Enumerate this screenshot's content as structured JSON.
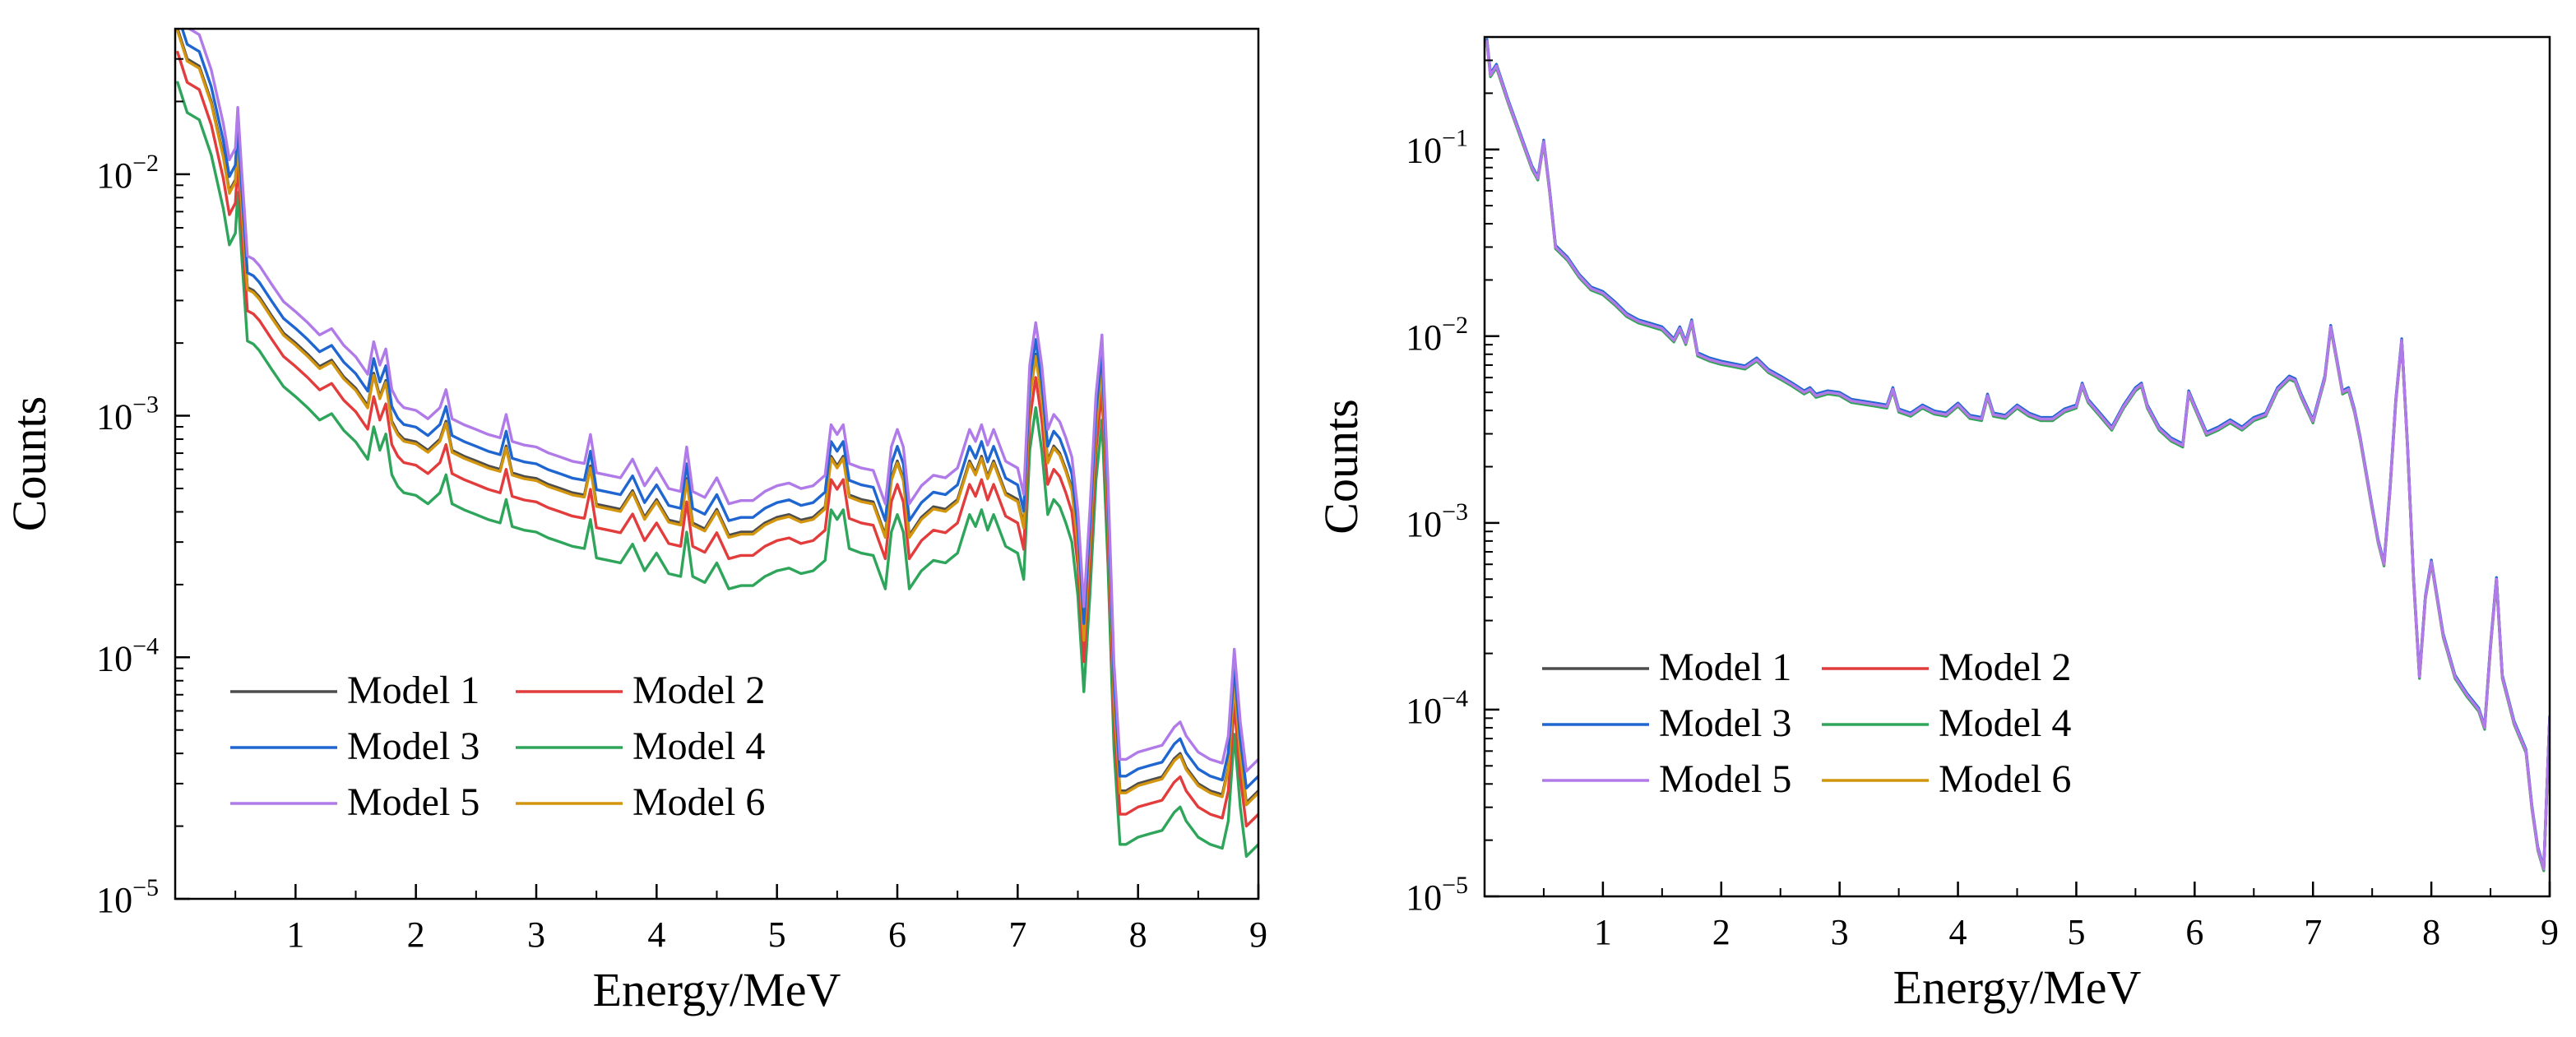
{
  "chart_data": [
    {
      "type": "line",
      "panel": "left",
      "xlabel": "Energy/MeV",
      "ylabel": "Counts",
      "xscale": "linear",
      "yscale": "log",
      "xlim": [
        0,
        9
      ],
      "ylim": [
        1e-05,
        0.04
      ],
      "x_ticks": [
        1,
        2,
        3,
        4,
        5,
        6,
        7,
        8,
        9
      ],
      "y_ticks": [
        {
          "value": 1e-05,
          "base": "10",
          "exp": "−5"
        },
        {
          "value": 0.0001,
          "base": "10",
          "exp": "−4"
        },
        {
          "value": 0.001,
          "base": "10",
          "exp": "−3"
        },
        {
          "value": 0.01,
          "base": "10",
          "exp": "−2"
        }
      ],
      "legend_position": "lower-left",
      "legend": [
        "Model 1",
        "Model 2",
        "Model 3",
        "Model 4",
        "Model 5",
        "Model 6"
      ],
      "reference_spectrum": {
        "x": [
          0.02,
          0.1,
          0.2,
          0.3,
          0.4,
          0.45,
          0.5,
          0.52,
          0.55,
          0.6,
          0.65,
          0.7,
          0.8,
          0.9,
          1.0,
          1.1,
          1.2,
          1.3,
          1.4,
          1.5,
          1.6,
          1.65,
          1.7,
          1.75,
          1.8,
          1.85,
          1.9,
          2.0,
          2.1,
          2.2,
          2.25,
          2.3,
          2.4,
          2.5,
          2.6,
          2.7,
          2.75,
          2.8,
          2.9,
          3.0,
          3.1,
          3.2,
          3.3,
          3.4,
          3.45,
          3.5,
          3.6,
          3.7,
          3.8,
          3.9,
          4.0,
          4.1,
          4.2,
          4.25,
          4.3,
          4.4,
          4.5,
          4.6,
          4.7,
          4.8,
          4.9,
          5.0,
          5.1,
          5.2,
          5.3,
          5.4,
          5.45,
          5.5,
          5.55,
          5.6,
          5.7,
          5.8,
          5.9,
          5.95,
          6.0,
          6.05,
          6.1,
          6.2,
          6.3,
          6.4,
          6.5,
          6.6,
          6.65,
          6.7,
          6.75,
          6.8,
          6.9,
          7.0,
          7.05,
          7.1,
          7.15,
          7.2,
          7.25,
          7.3,
          7.35,
          7.4,
          7.45,
          7.5,
          7.55,
          7.6,
          7.65,
          7.7,
          7.75,
          7.8,
          7.85,
          7.9,
          8.0,
          8.1,
          8.2,
          8.3,
          8.35,
          8.4,
          8.5,
          8.6,
          8.7,
          8.75,
          8.8,
          8.85,
          8.9,
          9.0
        ],
        "y": [
          0.04,
          0.03,
          0.028,
          0.02,
          0.012,
          0.0085,
          0.0095,
          0.014,
          0.008,
          0.0034,
          0.0033,
          0.0031,
          0.0026,
          0.0022,
          0.002,
          0.0018,
          0.0016,
          0.0017,
          0.00145,
          0.0013,
          0.0011,
          0.0015,
          0.0012,
          0.0014,
          0.00095,
          0.00085,
          0.0008,
          0.00078,
          0.00072,
          0.0008,
          0.00095,
          0.00072,
          0.00068,
          0.00065,
          0.00062,
          0.0006,
          0.00075,
          0.00058,
          0.00056,
          0.00055,
          0.00052,
          0.0005,
          0.00048,
          0.00047,
          0.00062,
          0.00043,
          0.00042,
          0.00041,
          0.00049,
          0.00038,
          0.00045,
          0.00037,
          0.00036,
          0.00055,
          0.00036,
          0.00034,
          0.00041,
          0.00032,
          0.00033,
          0.00033,
          0.00036,
          0.00038,
          0.00039,
          0.00037,
          0.00038,
          0.00042,
          0.00068,
          0.00062,
          0.00068,
          0.00047,
          0.00045,
          0.00044,
          0.00032,
          0.00055,
          0.00065,
          0.00055,
          0.00032,
          0.00038,
          0.00042,
          0.00041,
          0.00045,
          0.00065,
          0.00058,
          0.00068,
          0.00056,
          0.00065,
          0.00048,
          0.00045,
          0.00035,
          0.0012,
          0.0018,
          0.0012,
          0.00065,
          0.00075,
          0.0007,
          0.0006,
          0.0005,
          0.0003,
          0.00012,
          0.0003,
          0.0009,
          0.0016,
          0.0004,
          7e-05,
          2.8e-05,
          2.8e-05,
          3e-05,
          3.1e-05,
          3.2e-05,
          3.8e-05,
          4e-05,
          3.5e-05,
          3e-05,
          2.8e-05,
          2.7e-05,
          3.5e-05,
          8e-05,
          4e-05,
          2.5e-05,
          2.8e-05
        ]
      },
      "series": [
        {
          "name": "Model 1",
          "color": "#4d4d4d",
          "scale": 1.0
        },
        {
          "name": "Model 2",
          "color": "#e23c3c",
          "scale": 0.8
        },
        {
          "name": "Model 3",
          "color": "#1f66d1",
          "scale": 1.15
        },
        {
          "name": "Model 4",
          "color": "#2ea55a",
          "scale": 0.6
        },
        {
          "name": "Model 5",
          "color": "#b07ae8",
          "scale": 1.35
        },
        {
          "name": "Model 6",
          "color": "#d4950e",
          "scale": 0.98
        }
      ]
    },
    {
      "type": "line",
      "panel": "right",
      "xlabel": "Energy/MeV",
      "ylabel": "Counts",
      "xscale": "linear",
      "yscale": "log",
      "xlim": [
        0,
        9
      ],
      "ylim": [
        1e-05,
        0.4
      ],
      "x_ticks": [
        1,
        2,
        3,
        4,
        5,
        6,
        7,
        8,
        9
      ],
      "y_ticks": [
        {
          "value": 1e-05,
          "base": "10",
          "exp": "−5"
        },
        {
          "value": 0.0001,
          "base": "10",
          "exp": "−4"
        },
        {
          "value": 0.001,
          "base": "10",
          "exp": "−3"
        },
        {
          "value": 0.01,
          "base": "10",
          "exp": "−2"
        },
        {
          "value": 0.1,
          "base": "10",
          "exp": "−1"
        }
      ],
      "legend_position": "lower-left",
      "legend": [
        "Model 1",
        "Model 2",
        "Model 3",
        "Model 4",
        "Model 5",
        "Model 6"
      ],
      "reference_spectrum": {
        "x": [
          0.02,
          0.05,
          0.1,
          0.2,
          0.3,
          0.4,
          0.45,
          0.5,
          0.55,
          0.6,
          0.7,
          0.8,
          0.9,
          1.0,
          1.1,
          1.2,
          1.3,
          1.4,
          1.5,
          1.6,
          1.65,
          1.7,
          1.75,
          1.8,
          1.9,
          2.0,
          2.1,
          2.2,
          2.3,
          2.4,
          2.5,
          2.6,
          2.7,
          2.75,
          2.8,
          2.9,
          3.0,
          3.1,
          3.2,
          3.3,
          3.4,
          3.45,
          3.5,
          3.6,
          3.7,
          3.8,
          3.9,
          4.0,
          4.1,
          4.2,
          4.25,
          4.3,
          4.4,
          4.5,
          4.6,
          4.7,
          4.8,
          4.9,
          5.0,
          5.05,
          5.1,
          5.2,
          5.3,
          5.4,
          5.5,
          5.55,
          5.6,
          5.7,
          5.8,
          5.9,
          5.95,
          6.0,
          6.1,
          6.2,
          6.3,
          6.4,
          6.5,
          6.6,
          6.7,
          6.8,
          6.85,
          6.9,
          7.0,
          7.1,
          7.15,
          7.2,
          7.25,
          7.3,
          7.35,
          7.4,
          7.5,
          7.55,
          7.6,
          7.65,
          7.7,
          7.75,
          7.8,
          7.85,
          7.9,
          7.95,
          8.0,
          8.1,
          8.2,
          8.3,
          8.4,
          8.45,
          8.5,
          8.55,
          8.6,
          8.7,
          8.8,
          8.85,
          8.9,
          8.95,
          9.0
        ],
        "y": [
          0.38,
          0.25,
          0.28,
          0.18,
          0.12,
          0.08,
          0.07,
          0.11,
          0.06,
          0.03,
          0.026,
          0.021,
          0.018,
          0.017,
          0.015,
          0.013,
          0.012,
          0.0115,
          0.011,
          0.0095,
          0.011,
          0.0092,
          0.012,
          0.008,
          0.0075,
          0.0072,
          0.007,
          0.0068,
          0.0075,
          0.0065,
          0.006,
          0.0055,
          0.005,
          0.0052,
          0.0048,
          0.005,
          0.0049,
          0.0045,
          0.0044,
          0.0043,
          0.0042,
          0.0052,
          0.004,
          0.0038,
          0.0042,
          0.0039,
          0.0038,
          0.0043,
          0.0037,
          0.0036,
          0.0048,
          0.0038,
          0.0037,
          0.0042,
          0.0038,
          0.0036,
          0.0036,
          0.004,
          0.0042,
          0.0055,
          0.0045,
          0.0038,
          0.0032,
          0.0042,
          0.0052,
          0.0055,
          0.0042,
          0.0032,
          0.0028,
          0.0026,
          0.005,
          0.0042,
          0.003,
          0.0032,
          0.0035,
          0.0032,
          0.0036,
          0.0038,
          0.0052,
          0.006,
          0.0058,
          0.0048,
          0.0035,
          0.006,
          0.0112,
          0.0075,
          0.005,
          0.0052,
          0.004,
          0.0028,
          0.0012,
          0.0008,
          0.0006,
          0.0015,
          0.0045,
          0.0095,
          0.0025,
          0.0005,
          0.00015,
          0.0004,
          0.00062,
          0.00025,
          0.00015,
          0.00012,
          0.0001,
          8e-05,
          0.00022,
          0.0005,
          0.00015,
          8.5e-05,
          6e-05,
          3e-05,
          1.8e-05,
          1.4e-05,
          9e-05
        ]
      },
      "series": [
        {
          "name": "Model 1",
          "color": "#4d4d4d",
          "scale": 1.0
        },
        {
          "name": "Model 2",
          "color": "#e23c3c",
          "scale": 1.0
        },
        {
          "name": "Model 3",
          "color": "#1f66d1",
          "scale": 1.02
        },
        {
          "name": "Model 4",
          "color": "#2ea55a",
          "scale": 0.98
        },
        {
          "name": "Model 5",
          "color": "#b07ae8",
          "scale": 1.0
        },
        {
          "name": "Model 6",
          "color": "#d4950e",
          "scale": 1.0
        }
      ]
    }
  ]
}
